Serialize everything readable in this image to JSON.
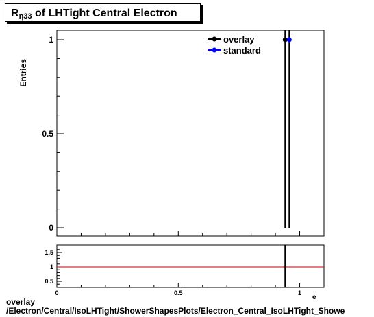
{
  "chart_data": [
    {
      "type": "line",
      "title_main": "R",
      "title_sub": "η33",
      "title_rest": " of LHTight Central  Electron",
      "ylabel": "Entries",
      "xlim": [
        0,
        1.1
      ],
      "ylim": [
        0,
        1
      ],
      "yticks": [
        {
          "v": 0,
          "label": "0"
        },
        {
          "v": 0.5,
          "label": "0.5"
        },
        {
          "v": 1,
          "label": "1"
        }
      ],
      "grid": false,
      "legend_position": "top-right",
      "series": [
        {
          "name": "overlay",
          "color": "#000000",
          "x": 0.94,
          "y": 1
        },
        {
          "name": "standard",
          "color": "#0000ff",
          "x": 0.957,
          "y": 1
        }
      ]
    },
    {
      "type": "line",
      "xlim": [
        0,
        1.1
      ],
      "ylim": [
        0.35,
        1.7
      ],
      "xticks": [
        {
          "v": 0,
          "label": "0"
        },
        {
          "v": 0.5,
          "label": "0.5"
        },
        {
          "v": 1,
          "label": "1"
        }
      ],
      "yticks": [
        {
          "v": 0.5,
          "label": "0.5"
        },
        {
          "v": 1,
          "label": "1"
        },
        {
          "v": 1.5,
          "label": "1.5"
        }
      ],
      "reference_line": {
        "y": 1,
        "color": "#cc0000"
      },
      "marker_x": 0.94,
      "xlabel_fragment": "e"
    }
  ],
  "footer": {
    "line1": "overlay",
    "line2": "/Electron/Central/IsoLHTight/ShowerShapesPlots/Electron_Central_IsoLHTight_Showe"
  }
}
